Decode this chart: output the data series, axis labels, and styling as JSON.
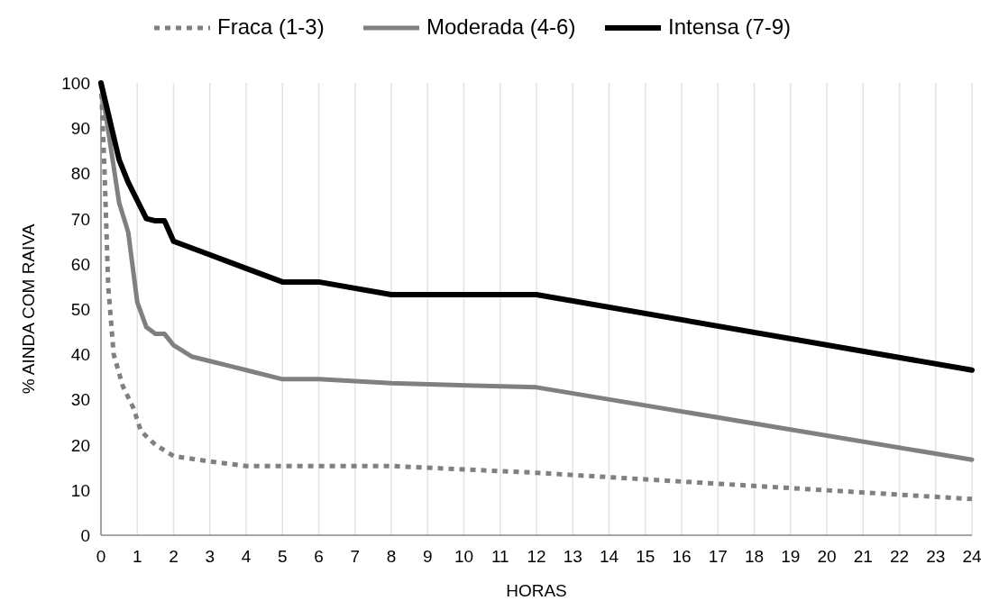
{
  "chart_data": {
    "type": "line",
    "xlabel": "HORAS",
    "ylabel": "% AINDA COM RAIVA",
    "xlim": [
      0,
      24
    ],
    "xticks": [
      0,
      1,
      2,
      3,
      4,
      5,
      6,
      7,
      8,
      9,
      10,
      11,
      12,
      13,
      14,
      15,
      16,
      17,
      18,
      19,
      20,
      21,
      22,
      23,
      24
    ],
    "ylim": [
      0,
      100
    ],
    "yticks": [
      0,
      10,
      20,
      30,
      40,
      50,
      60,
      70,
      80,
      90,
      100
    ],
    "grid": "x",
    "legend": "top",
    "series": [
      {
        "name": "Fraca (1-3)",
        "color": "#808080",
        "line_style": "dotted",
        "x": [
          0,
          0.1,
          0.2,
          0.35,
          0.6,
          0.9,
          1.1,
          1.5,
          2,
          3,
          4,
          8,
          12,
          24
        ],
        "values": [
          100,
          80,
          55,
          40,
          33,
          28,
          23,
          20,
          17.5,
          16.3,
          15.3,
          15.3,
          13.8,
          8
        ]
      },
      {
        "name": "Moderada (4-6)",
        "color": "#808080",
        "line_style": "solid",
        "x": [
          0,
          0.5,
          0.75,
          1,
          1.25,
          1.5,
          1.75,
          2,
          2.5,
          3,
          4,
          5,
          6,
          8,
          12,
          24
        ],
        "values": [
          100,
          73.5,
          67,
          51.5,
          46,
          44.5,
          44.5,
          42,
          39.5,
          38.5,
          36.5,
          34.5,
          34.5,
          33.6,
          32.7,
          16.7
        ]
      },
      {
        "name": "Intensa (7-9)",
        "color": "#000000",
        "line_style": "solid",
        "x": [
          0,
          0.5,
          0.75,
          1,
          1.25,
          1.5,
          1.75,
          2,
          2.5,
          3,
          4,
          5,
          6,
          8,
          12,
          24
        ],
        "values": [
          100,
          83,
          78,
          74,
          70,
          69.5,
          69.5,
          65,
          63.5,
          62,
          59,
          56,
          56,
          53.2,
          53.2,
          36.5
        ]
      }
    ]
  }
}
